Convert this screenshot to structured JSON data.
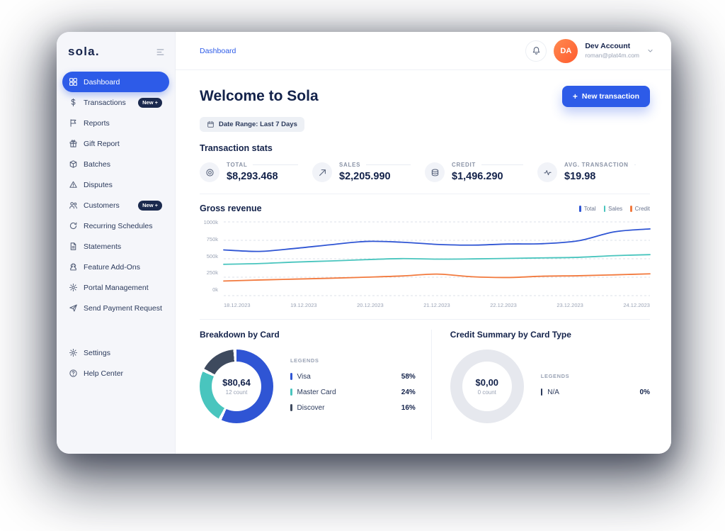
{
  "app": {
    "logo_text": "sola."
  },
  "sidebar": {
    "items": [
      {
        "label": "Dashboard",
        "icon": "grid",
        "active": true
      },
      {
        "label": "Transactions",
        "icon": "dollar",
        "badge": "New +"
      },
      {
        "label": "Reports",
        "icon": "flag"
      },
      {
        "label": "Gift Report",
        "icon": "gift"
      },
      {
        "label": "Batches",
        "icon": "box"
      },
      {
        "label": "Disputes",
        "icon": "alert"
      },
      {
        "label": "Customers",
        "icon": "users",
        "badge": "New +"
      },
      {
        "label": "Recurring Schedules",
        "icon": "refresh"
      },
      {
        "label": "Statements",
        "icon": "file"
      },
      {
        "label": "Feature Add-Ons",
        "icon": "puzzle"
      },
      {
        "label": "Portal Management",
        "icon": "gear"
      },
      {
        "label": "Send Payment Request",
        "icon": "send"
      }
    ],
    "footer_items": [
      {
        "label": "Settings",
        "icon": "gear"
      },
      {
        "label": "Help Center",
        "icon": "help"
      }
    ]
  },
  "header": {
    "breadcrumb": "Dashboard",
    "user": {
      "initials": "DA",
      "name": "Dev Account",
      "email": "roman@plat4m.com"
    }
  },
  "main": {
    "title": "Welcome to Sola",
    "new_transaction_plus": "+",
    "new_transaction_label": "New transaction",
    "date_range_label": "Date Range: Last 7 Days",
    "stats_title": "Transaction stats",
    "stats": [
      {
        "icon": "target",
        "label": "TOTAL",
        "value": "$8,293.468"
      },
      {
        "icon": "trend-up",
        "label": "SALES",
        "value": "$2,205.990"
      },
      {
        "icon": "coins",
        "label": "CREDIT",
        "value": "$1,496.290"
      },
      {
        "icon": "pulse",
        "label": "AVG. TRANSACTION",
        "value": "$19.98"
      }
    ]
  },
  "chart_data": [
    {
      "type": "line",
      "title": "Gross revenue",
      "grid": "horizontal-dashed",
      "legend_position": "top-right",
      "ylim": [
        0,
        1000
      ],
      "yticks": [
        1000,
        750,
        500,
        250,
        0
      ],
      "ytick_labels": [
        "1000k",
        "750k",
        "500k",
        "250k",
        "0k"
      ],
      "x_labels": [
        "18.12.2023",
        "19.12.2023",
        "20.12.2023",
        "21.12.2023",
        "22.12.2023",
        "23.12.2023",
        "24.12.2023"
      ],
      "series": [
        {
          "name": "Total",
          "color": "#2F55D4",
          "values": [
            620,
            600,
            640,
            690,
            735,
            725,
            695,
            685,
            700,
            705,
            745,
            865,
            905
          ]
        },
        {
          "name": "Sales",
          "color": "#49C5BE",
          "values": [
            425,
            435,
            455,
            470,
            488,
            502,
            495,
            498,
            505,
            512,
            520,
            542,
            556
          ]
        },
        {
          "name": "Credit",
          "color": "#F2793D",
          "values": [
            198,
            212,
            224,
            236,
            250,
            266,
            292,
            256,
            246,
            264,
            270,
            282,
            296
          ]
        }
      ]
    },
    {
      "type": "pie",
      "title": "Breakdown by Card",
      "center_value": "$80,64",
      "center_sub": "12 count",
      "legend_title": "LEGENDS",
      "segments": [
        {
          "label": "Visa",
          "pct": 58,
          "color": "#2F55D4"
        },
        {
          "label": "Master Card",
          "pct": 24,
          "color": "#49C5BE"
        },
        {
          "label": "Discover",
          "pct": 16,
          "color": "#3E4A5E"
        }
      ]
    },
    {
      "type": "pie",
      "title": "Credit Summary by Card Type",
      "center_value": "$0,00",
      "center_sub": "0 count",
      "legend_title": "LEGENDS",
      "empty_color": "#E6E8EE",
      "segments": [
        {
          "label": "N/A",
          "pct": 0,
          "color": "#2B3A5C"
        }
      ]
    }
  ],
  "colors": {
    "primary": "#2D5BE8",
    "navy": "#13224A",
    "teal": "#49C5BE",
    "orange": "#F2793D",
    "badge": "#1B2A4E",
    "sidebar_bg": "#F5F6FA",
    "muted": "#8A93A6",
    "border": "#E8ECF2",
    "avatar": "#FF6A3D",
    "empty_donut": "#E6E8EE"
  }
}
